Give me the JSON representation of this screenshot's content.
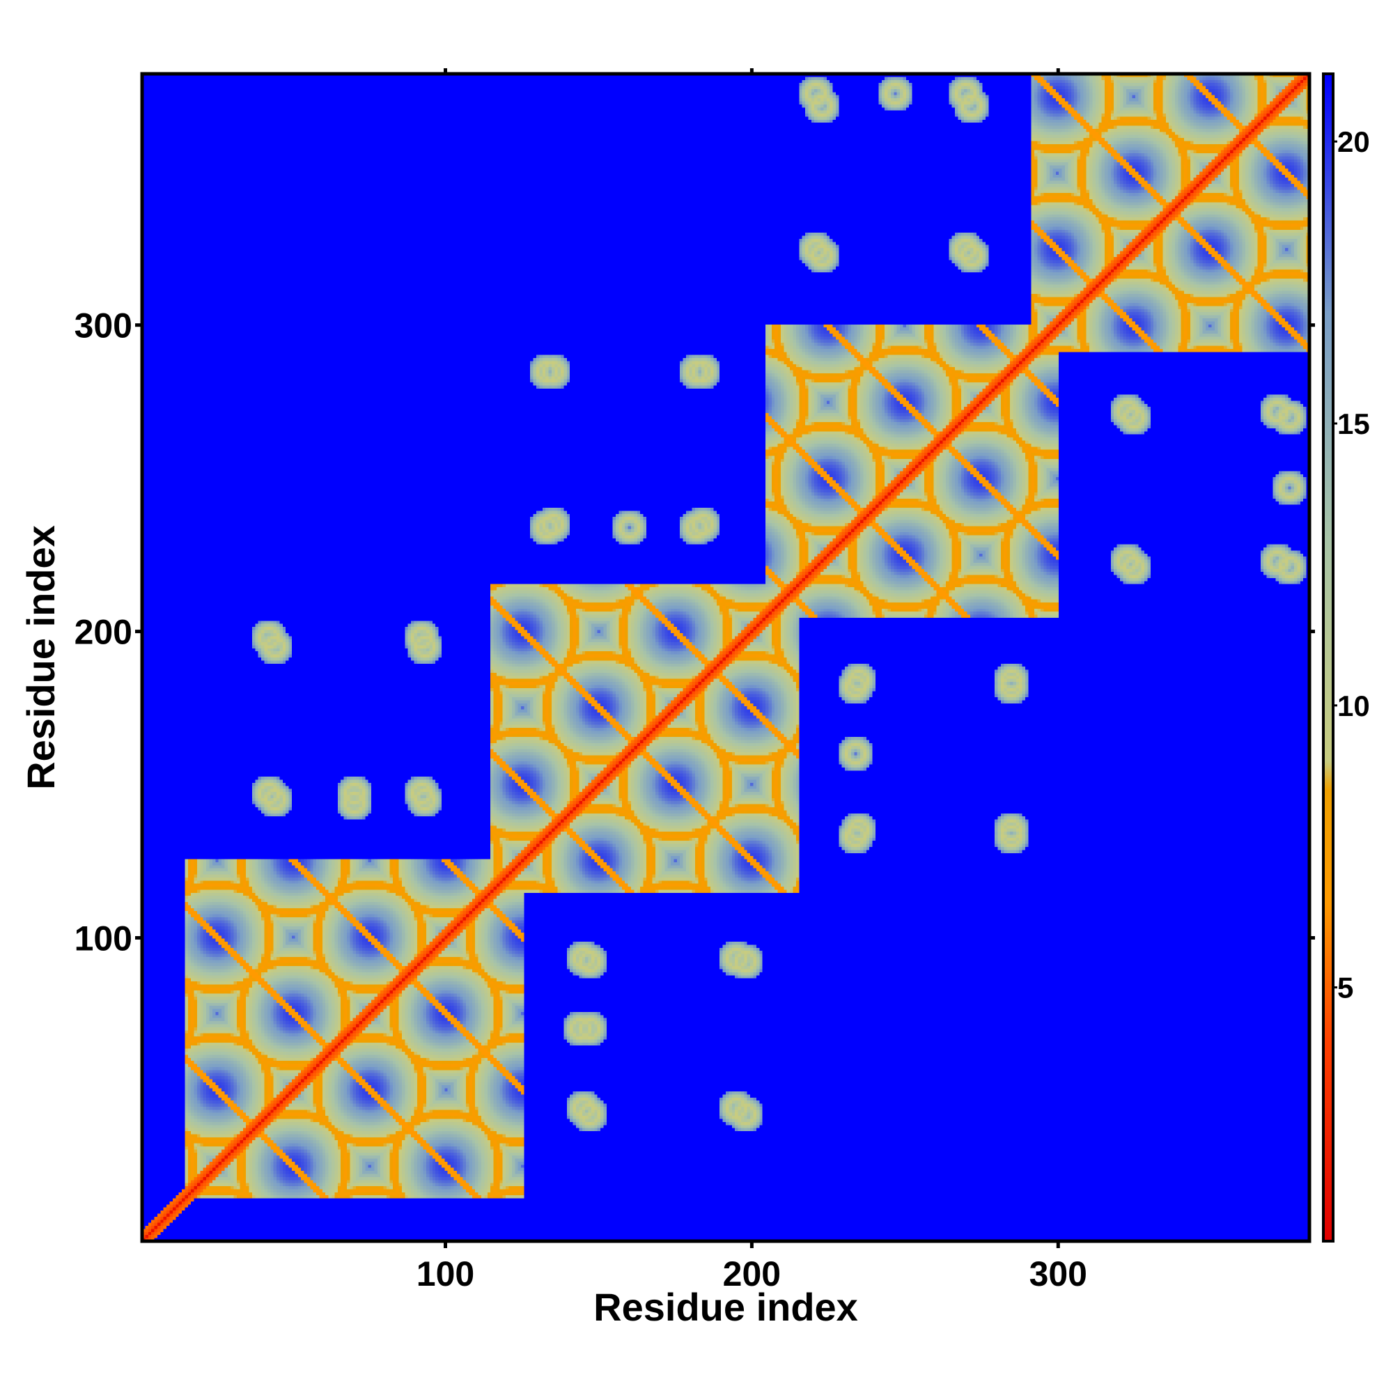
{
  "chart_data": {
    "type": "heatmap",
    "title": "",
    "xlabel": "Residue index",
    "ylabel": "Residue index",
    "xlim": [
      1,
      382
    ],
    "ylim": [
      1,
      382
    ],
    "x_ticks": [
      100,
      200,
      300
    ],
    "y_ticks": [
      100,
      200,
      300
    ],
    "grid": false,
    "colorbar": {
      "range": [
        0.5,
        21.2
      ],
      "ticks": [
        5,
        10,
        15,
        20
      ],
      "colors": [
        {
          "value": 0.5,
          "color": "#e00000"
        },
        {
          "value": 4.0,
          "color": "#ff4000"
        },
        {
          "value": 6.5,
          "color": "#ff9a00"
        },
        {
          "value": 8.5,
          "color": "#f0a000"
        },
        {
          "value": 9.0,
          "color": "#c8cc80"
        },
        {
          "value": 13.0,
          "color": "#a8c4a8"
        },
        {
          "value": 17.0,
          "color": "#7a9ec8"
        },
        {
          "value": 21.2,
          "color": "#0000ff"
        }
      ]
    },
    "cutoff": 20,
    "domains": [
      {
        "start": 15,
        "end": 125
      },
      {
        "start": 115,
        "end": 215
      },
      {
        "start": 205,
        "end": 300
      },
      {
        "start": 292,
        "end": 382
      }
    ],
    "interdomain_contact_clusters": [
      [
        42,
        198
      ],
      [
        92,
        198
      ],
      [
        42,
        147
      ],
      [
        92,
        147
      ],
      [
        70,
        147
      ],
      [
        145,
        93
      ],
      [
        195,
        93
      ],
      [
        145,
        44
      ],
      [
        195,
        44
      ],
      [
        144,
        70
      ],
      [
        133,
        285
      ],
      [
        182,
        285
      ],
      [
        133,
        234
      ],
      [
        182,
        234
      ],
      [
        160,
        234
      ],
      [
        235,
        184
      ],
      [
        285,
        184
      ],
      [
        235,
        135
      ],
      [
        285,
        135
      ],
      [
        221,
        325
      ],
      [
        270,
        325
      ],
      [
        221,
        376
      ],
      [
        270,
        376
      ],
      [
        247,
        376
      ],
      [
        323,
        272
      ],
      [
        372,
        272
      ],
      [
        323,
        223
      ],
      [
        372,
        223
      ]
    ],
    "colors": {
      "background": "#0000ff",
      "diagonal": "#e00000",
      "frame": "#000000"
    }
  }
}
